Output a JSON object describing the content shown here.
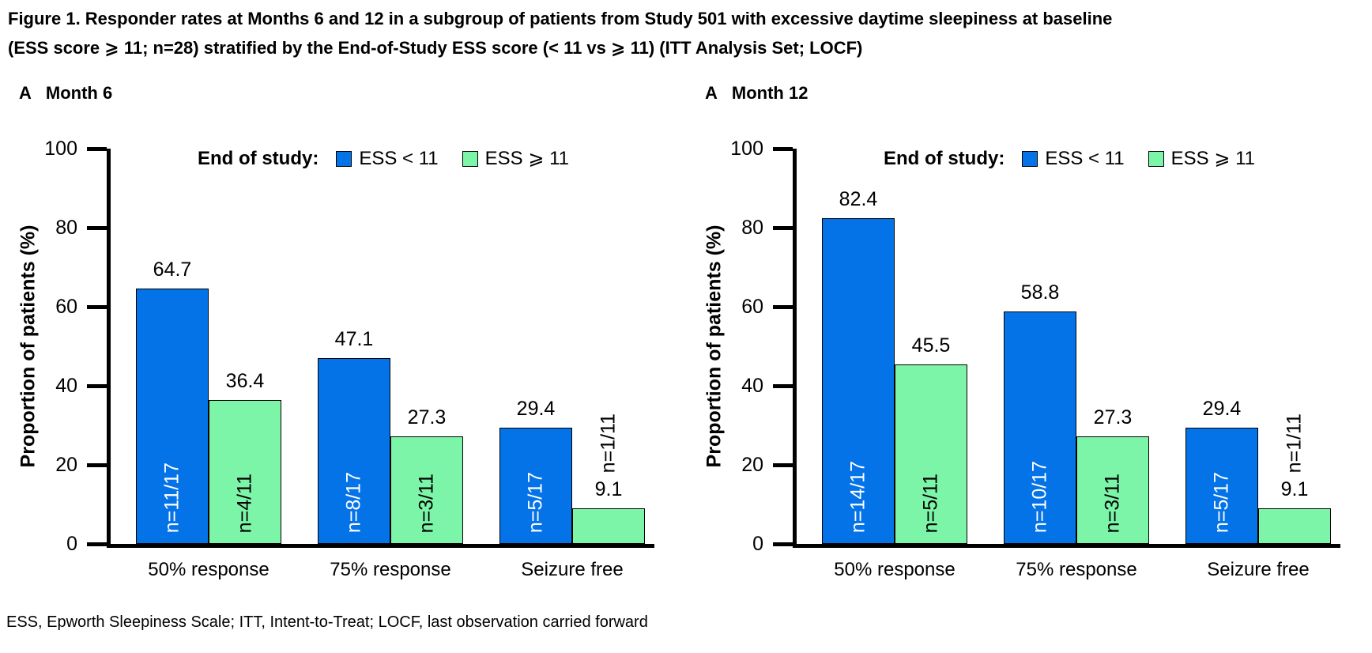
{
  "title": {
    "line1": "Figure 1. Responder rates at Months 6 and 12 in a subgroup of patients from Study 501 with excessive daytime sleepiness at baseline",
    "line2": "(ESS score ⩾ 11; n=28) stratified by the End-of-Study ESS score (< 11 vs ⩾ 11) (ITT Analysis Set; LOCF)"
  },
  "footnote": "ESS, Epworth Sleepiness Scale; ITT, Intent-to-Treat; LOCF, last observation carried forward",
  "chart_data": [
    {
      "type": "bar",
      "panel_label": "A",
      "title": "Month 6",
      "legend_title": "End of study:",
      "legend_position": "top-inside",
      "categories": [
        "50% response",
        "75% response",
        "Seizure free"
      ],
      "series": [
        {
          "name": "ESS < 11",
          "color": "#0573E8",
          "n_label_color": "#FFFFFF",
          "values": [
            64.7,
            47.1,
            29.4
          ],
          "n_labels": [
            "n=11/17",
            "n=8/17",
            "n=5/17"
          ]
        },
        {
          "name": "ESS ⩾ 11",
          "color": "#7CF5A8",
          "n_label_color": "#000000",
          "values": [
            36.4,
            27.3,
            9.1
          ],
          "n_labels": [
            "n=4/11",
            "n=3/11",
            "n=1/11"
          ]
        }
      ],
      "xlabel": "",
      "ylabel": "Proportion of patients (%)",
      "ylim": [
        0,
        100
      ],
      "yticks": [
        0,
        20,
        40,
        60,
        80,
        100
      ],
      "grid": false
    },
    {
      "type": "bar",
      "panel_label": "A",
      "title": "Month 12",
      "legend_title": "End of study:",
      "legend_position": "top-inside",
      "categories": [
        "50% response",
        "75% response",
        "Seizure free"
      ],
      "series": [
        {
          "name": "ESS < 11",
          "color": "#0573E8",
          "n_label_color": "#FFFFFF",
          "values": [
            82.4,
            58.8,
            29.4
          ],
          "n_labels": [
            "n=14/17",
            "n=10/17",
            "n=5/17"
          ]
        },
        {
          "name": "ESS ⩾ 11",
          "color": "#7CF5A8",
          "n_label_color": "#000000",
          "values": [
            45.5,
            27.3,
            9.1
          ],
          "n_labels": [
            "n=5/11",
            "n=3/11",
            "n=1/11"
          ]
        }
      ],
      "xlabel": "",
      "ylabel": "Proportion of patients (%)",
      "ylim": [
        0,
        100
      ],
      "yticks": [
        0,
        20,
        40,
        60,
        80,
        100
      ],
      "grid": false
    }
  ]
}
